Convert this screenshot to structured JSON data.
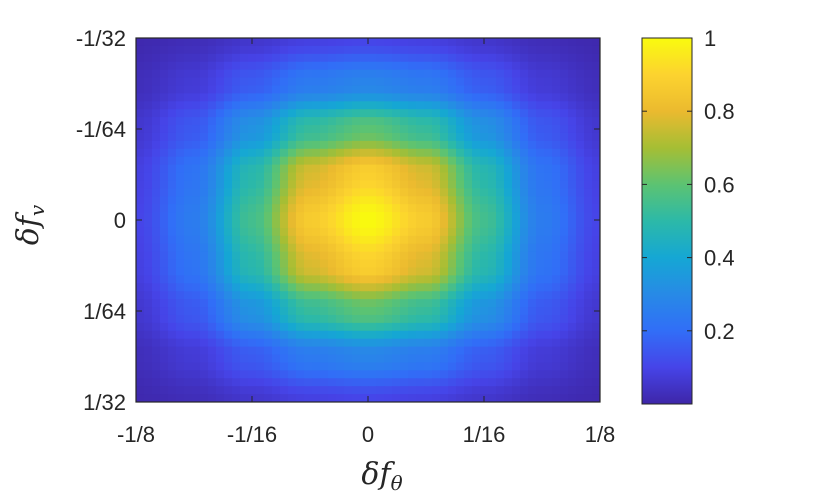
{
  "chart_data": {
    "type": "heatmap",
    "title": "",
    "xlabel": "δf",
    "xlabel_sub": "θ",
    "ylabel": "δf",
    "ylabel_sub": "v",
    "x_ticks": [
      {
        "value": -0.125,
        "label": "-1/8"
      },
      {
        "value": -0.0625,
        "label": "-1/16"
      },
      {
        "value": 0,
        "label": "0"
      },
      {
        "value": 0.0625,
        "label": "1/16"
      },
      {
        "value": 0.125,
        "label": "1/8"
      }
    ],
    "y_ticks": [
      {
        "value": -0.03125,
        "label": "-1/32"
      },
      {
        "value": -0.015625,
        "label": "-1/64"
      },
      {
        "value": 0,
        "label": "0"
      },
      {
        "value": 0.015625,
        "label": "1/64"
      },
      {
        "value": 0.03125,
        "label": "1/32"
      }
    ],
    "xlim": [
      -0.125,
      0.125
    ],
    "ylim": [
      -0.03125,
      0.03125
    ],
    "y_direction": "reversed",
    "colormap": "parula",
    "clim": [
      0,
      1
    ],
    "peak": {
      "x": 0,
      "y": 0,
      "value": 1
    },
    "value_model": "approximately separable peak normalized to 1 at center: f(x)*g(y)",
    "x_profile": [
      {
        "x": -0.125,
        "v": 0.1
      },
      {
        "x": -0.094,
        "v": 0.25
      },
      {
        "x": -0.0625,
        "v": 0.55
      },
      {
        "x": -0.03125,
        "v": 0.87
      },
      {
        "x": 0,
        "v": 1.0
      },
      {
        "x": 0.03125,
        "v": 0.87
      },
      {
        "x": 0.0625,
        "v": 0.55
      },
      {
        "x": 0.094,
        "v": 0.25
      },
      {
        "x": 0.125,
        "v": 0.1
      }
    ],
    "y_profile": [
      {
        "y": -0.03125,
        "v": 0.1
      },
      {
        "y": -0.0234,
        "v": 0.28
      },
      {
        "y": -0.015625,
        "v": 0.6
      },
      {
        "y": -0.0078,
        "v": 0.89
      },
      {
        "y": 0,
        "v": 1.0
      },
      {
        "y": 0.0078,
        "v": 0.89
      },
      {
        "y": 0.015625,
        "v": 0.6
      },
      {
        "y": 0.0234,
        "v": 0.28
      },
      {
        "y": 0.03125,
        "v": 0.1
      }
    ],
    "colorbar": {
      "ticks": [
        {
          "value": 0.2,
          "label": "0.2"
        },
        {
          "value": 0.4,
          "label": "0.4"
        },
        {
          "value": 0.6,
          "label": "0.6"
        },
        {
          "value": 0.8,
          "label": "0.8"
        },
        {
          "value": 1,
          "label": "1"
        }
      ]
    },
    "colors": {
      "parula_low": "#3e26a8",
      "parula_mid": "#2ab7a8",
      "parula_high": "#f9fb0e",
      "axis": "#262626"
    }
  }
}
